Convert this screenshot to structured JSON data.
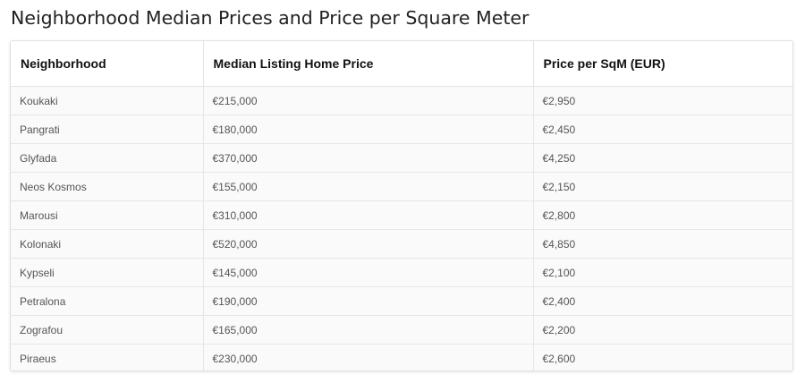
{
  "title": "Neighborhood Median Prices and Price per Square Meter",
  "table": {
    "headers": [
      "Neighborhood",
      "Median Listing Home Price",
      "Price per SqM (EUR)"
    ],
    "rows": [
      [
        "Koukaki",
        "€215,000",
        "€2,950"
      ],
      [
        "Pangrati",
        "€180,000",
        "€2,450"
      ],
      [
        "Glyfada",
        "€370,000",
        "€4,250"
      ],
      [
        "Neos Kosmos",
        "€155,000",
        "€2,150"
      ],
      [
        "Marousi",
        "€310,000",
        "€2,800"
      ],
      [
        "Kolonaki",
        "€520,000",
        "€4,850"
      ],
      [
        "Kypseli",
        "€145,000",
        "€2,100"
      ],
      [
        "Petralona",
        "€190,000",
        "€2,400"
      ],
      [
        "Zografou",
        "€165,000",
        "€2,200"
      ],
      [
        "Piraeus",
        "€230,000",
        "€2,600"
      ]
    ]
  },
  "colors": {
    "header_background": "#ffffff",
    "row_background": "#fafafa",
    "border": "#e3e3e3",
    "header_text": "#111111",
    "cell_text": "#555555"
  }
}
